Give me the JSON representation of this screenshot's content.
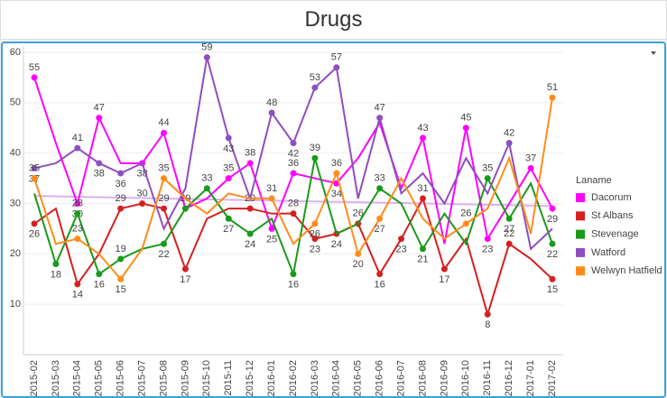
{
  "chart_data": {
    "type": "line",
    "title": "Drugs",
    "legend_title": "Laname",
    "legend": "right",
    "categories": [
      "2015-02",
      "2015-03",
      "2015-04",
      "2015-05",
      "2015-06",
      "2015-07",
      "2015-08",
      "2015-09",
      "2015-10",
      "2015-11",
      "2015-12",
      "2016-01",
      "2016-02",
      "2016-03",
      "2016-04",
      "2016-05",
      "2016-06",
      "2016-07",
      "2016-08",
      "2016-09",
      "2016-10",
      "2016-11",
      "2016-12",
      "2017-01",
      "2017-02"
    ],
    "ylim": [
      0,
      60
    ],
    "yticks": [
      10,
      20,
      30,
      40,
      50,
      60
    ],
    "grid": true,
    "series": [
      {
        "name": "Dacorum",
        "color": "#ff00ff",
        "values": [
          55,
          42,
          30,
          47,
          38,
          38,
          44,
          29,
          31,
          35,
          38,
          25,
          36,
          35,
          34,
          39,
          46,
          33,
          43,
          22,
          45,
          23,
          30,
          37,
          29
        ],
        "value_labels": [
          "55",
          null,
          "30",
          "47",
          null,
          "38",
          "44",
          null,
          null,
          "35",
          "38",
          "25",
          "36",
          null,
          "34",
          null,
          null,
          null,
          "43",
          null,
          "45",
          "23",
          null,
          "37",
          "29"
        ]
      },
      {
        "name": "St Albans",
        "color": "#d62020",
        "values": [
          26,
          29,
          14,
          20,
          29,
          30,
          29,
          17,
          27,
          29,
          29,
          28,
          28,
          23,
          24,
          26,
          16,
          23,
          31,
          17,
          23,
          8,
          22,
          19,
          15
        ],
        "value_labels": [
          "26",
          null,
          "14",
          null,
          "29",
          "30",
          "29",
          "17",
          null,
          null,
          "29",
          null,
          "28",
          "23",
          "24",
          "26",
          "16",
          "23",
          "31",
          "17",
          null,
          "8",
          "22",
          null,
          "15"
        ]
      },
      {
        "name": "Stevenage",
        "color": "#1a9a1a",
        "values": [
          32,
          18,
          28,
          16,
          19,
          21,
          22,
          29,
          33,
          27,
          24,
          27,
          16,
          39,
          24,
          26,
          33,
          30,
          21,
          28,
          22,
          35,
          27,
          34,
          22
        ],
        "value_labels": [
          null,
          "18",
          "28",
          "16",
          "19",
          null,
          "22",
          "29",
          "33",
          "27",
          "24",
          null,
          "16",
          "39",
          null,
          null,
          "33",
          null,
          "21",
          null,
          null,
          "35",
          "27",
          null,
          "22"
        ]
      },
      {
        "name": "Watford",
        "color": "#8e4fc0",
        "values": [
          37,
          38,
          41,
          38,
          36,
          38,
          25,
          33,
          59,
          43,
          31,
          48,
          42,
          53,
          57,
          31,
          47,
          32,
          36,
          30,
          39,
          32,
          42,
          21,
          25
        ],
        "value_labels": [
          "37",
          null,
          "41",
          "38",
          "36",
          null,
          null,
          null,
          "59",
          "43",
          null,
          "48",
          "42",
          "53",
          "57",
          null,
          "47",
          null,
          null,
          null,
          null,
          null,
          "42",
          null,
          null
        ]
      },
      {
        "name": "Welwyn Hatfield",
        "color": "#ff8c1a",
        "values": [
          35,
          22,
          23,
          20,
          15,
          21,
          35,
          31,
          28,
          32,
          31,
          31,
          22,
          26,
          36,
          20,
          27,
          35,
          27,
          23,
          26,
          29,
          39,
          24,
          51
        ],
        "value_labels": [
          "35",
          null,
          "23",
          null,
          "15",
          null,
          "35",
          null,
          null,
          null,
          null,
          "31",
          null,
          "26",
          "36",
          "20",
          "27",
          null,
          null,
          null,
          "26",
          null,
          null,
          null,
          "51"
        ]
      }
    ],
    "trend_line": {
      "color": "#dcb0f0",
      "values": [
        31.5,
        29.5
      ]
    }
  }
}
